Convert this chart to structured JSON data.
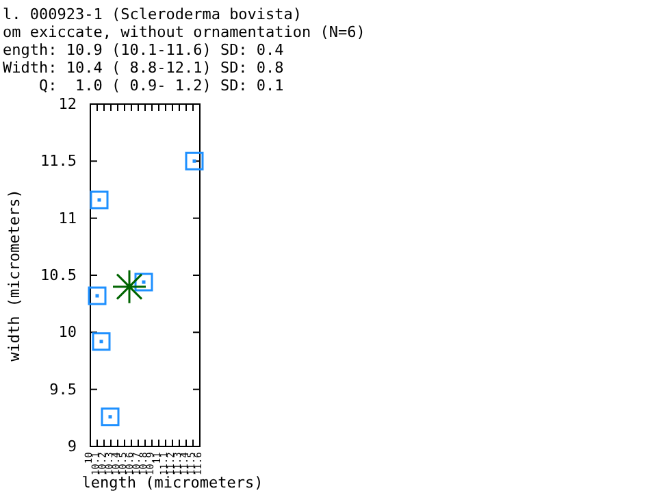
{
  "chart_data": {
    "type": "scatter",
    "title": "l. 000923-1 (Scleroderma bovista)",
    "subtitle": "om exiccate, without ornamentation (N=6)",
    "annotations": [
      "ength: 10.9 (10.1-11.6) SD: 0.4",
      "Width: 10.4 ( 8.8-12.1) SD: 0.8",
      "    Q:  1.0 ( 0.9- 1.2) SD: 0.1"
    ],
    "xlabel": "length (micrometers)",
    "ylabel": "width (micrometers)",
    "xlim": [
      10,
      11.6
    ],
    "xticks": [
      10,
      10.1,
      10.2,
      10.3,
      10.4,
      10.5,
      10.6,
      10.7,
      10.8,
      10.9,
      11,
      11.1,
      11.2,
      11.3,
      11.4,
      11.5,
      11.6
    ],
    "ylim": [
      9,
      12
    ],
    "yticks": [
      9,
      9.5,
      10,
      10.5,
      11,
      11.5,
      12
    ],
    "grid": false,
    "series": [
      {
        "marker": "square",
        "color": "#1e90ff",
        "x": [
          10.13,
          10.1,
          10.16,
          10.29,
          10.78,
          11.52
        ],
        "values": [
          11.16,
          10.32,
          9.92,
          9.26,
          10.44,
          11.5
        ]
      },
      {
        "marker": "cross",
        "color": "#006400",
        "x": [
          10.57
        ],
        "values": [
          10.4
        ]
      }
    ]
  }
}
